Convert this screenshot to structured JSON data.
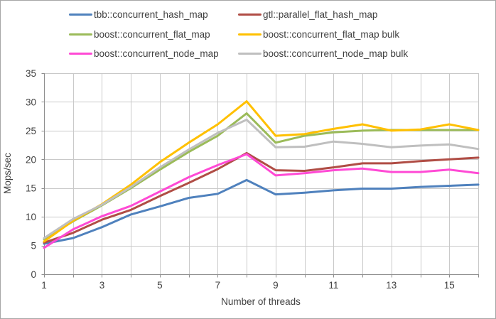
{
  "chart_data": {
    "type": "line",
    "xlabel": "Number of threads",
    "ylabel": "Mops/sec",
    "x": [
      1,
      2,
      3,
      4,
      5,
      6,
      7,
      8,
      9,
      10,
      11,
      12,
      13,
      14,
      15,
      16
    ],
    "xlim": [
      1,
      16
    ],
    "ylim": [
      0,
      35
    ],
    "x_ticks": [
      1,
      3,
      5,
      7,
      9,
      11,
      13,
      15
    ],
    "y_ticks": [
      0,
      5,
      10,
      15,
      20,
      25,
      30,
      35
    ],
    "grid": true,
    "legend_position": "top",
    "series": [
      {
        "name": "tbb::concurrent_hash_map",
        "color": "#4F81BD",
        "values": [
          5.3,
          6.3,
          8.2,
          10.4,
          11.8,
          13.3,
          14.0,
          16.4,
          13.9,
          14.2,
          14.6,
          14.9,
          14.9,
          15.2,
          15.4,
          15.6
        ]
      },
      {
        "name": "gtl::parallel_flat_hash_map",
        "color": "#B04D45",
        "values": [
          5.5,
          7.2,
          9.5,
          11.2,
          13.6,
          15.9,
          18.3,
          21.1,
          18.1,
          18.0,
          18.6,
          19.3,
          19.3,
          19.7,
          20.0,
          20.3
        ]
      },
      {
        "name": "boost::concurrent_flat_map",
        "color": "#9BBB59",
        "values": [
          6.1,
          9.2,
          12.0,
          15.0,
          18.2,
          21.3,
          24.1,
          28.0,
          22.9,
          24.1,
          24.7,
          25.0,
          25.1,
          25.1,
          25.1,
          25.1
        ]
      },
      {
        "name": "boost::concurrent_flat_map bulk",
        "color": "#FFC000",
        "values": [
          5.7,
          9.3,
          12.2,
          15.6,
          19.5,
          22.9,
          26.1,
          30.1,
          24.1,
          24.4,
          25.3,
          26.1,
          25.0,
          25.2,
          26.1,
          25.1
        ]
      },
      {
        "name": "boost::concurrent_node_map",
        "color": "#FF4AD5",
        "values": [
          4.6,
          7.8,
          10.1,
          11.9,
          14.4,
          16.9,
          19.0,
          20.9,
          17.2,
          17.6,
          18.1,
          18.4,
          17.8,
          17.8,
          18.2,
          17.6
        ]
      },
      {
        "name": "boost::concurrent_node_map bulk",
        "color": "#BFBFBF",
        "values": [
          6.3,
          9.6,
          12.1,
          15.2,
          18.6,
          21.7,
          24.6,
          26.9,
          22.1,
          22.2,
          23.1,
          22.7,
          22.1,
          22.4,
          22.6,
          21.8
        ]
      }
    ]
  },
  "colors": {
    "gridline": "#C9C9C9",
    "axis": "#8E8E8E",
    "text": "#3F3F3F",
    "background": "#FFFFFF",
    "border": "#A6A6A6"
  }
}
